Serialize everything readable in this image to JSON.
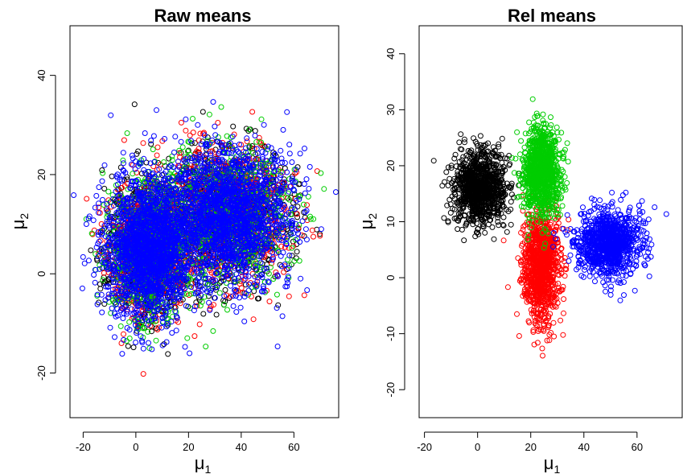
{
  "chart_data": [
    {
      "type": "scatter",
      "title": "Raw means",
      "xlabel": "μ",
      "xlabel_subscript": "1",
      "ylabel": "μ",
      "ylabel_subscript": "2",
      "xlim": [
        -25,
        77
      ],
      "ylim": [
        -29,
        50
      ],
      "xticks": [
        -20,
        0,
        20,
        40,
        60
      ],
      "yticks": [
        -20,
        0,
        20,
        40
      ],
      "grid": false,
      "marker": "open-circle",
      "series": [
        {
          "color": "#000000",
          "points_approx": 1500,
          "clusters": [
            {
              "mean": [
                5,
                5
              ],
              "sd": [
                8,
                7
              ]
            },
            {
              "mean": [
                35,
                12
              ],
              "sd": [
                12,
                7
              ]
            }
          ]
        },
        {
          "color": "#ff0000",
          "points_approx": 1500,
          "clusters": [
            {
              "mean": [
                5,
                5
              ],
              "sd": [
                8,
                7
              ]
            },
            {
              "mean": [
                35,
                12
              ],
              "sd": [
                12,
                7
              ]
            }
          ]
        },
        {
          "color": "#00cd00",
          "points_approx": 1500,
          "clusters": [
            {
              "mean": [
                5,
                5
              ],
              "sd": [
                8,
                7
              ]
            },
            {
              "mean": [
                35,
                12
              ],
              "sd": [
                12,
                7
              ]
            }
          ]
        },
        {
          "color": "#0000ff",
          "points_approx": 3500,
          "clusters": [
            {
              "mean": [
                5,
                5
              ],
              "sd": [
                8,
                7
              ]
            },
            {
              "mean": [
                35,
                12
              ],
              "sd": [
                12,
                7
              ]
            }
          ]
        }
      ]
    },
    {
      "type": "scatter",
      "title": "Rel means",
      "xlabel": "μ",
      "xlabel_subscript": "1",
      "ylabel": "μ",
      "ylabel_subscript": "2",
      "xlim": [
        -22,
        77
      ],
      "ylim": [
        -25,
        45
      ],
      "xticks": [
        -20,
        0,
        20,
        40,
        60
      ],
      "yticks": [
        -20,
        -10,
        0,
        10,
        20,
        30,
        40
      ],
      "grid": false,
      "marker": "open-circle",
      "series": [
        {
          "color": "#000000",
          "points_approx": 1000,
          "clusters": [
            {
              "mean": [
                1,
                16
              ],
              "sd": [
                5,
                3.2
              ]
            }
          ]
        },
        {
          "color": "#ff0000",
          "points_approx": 1000,
          "clusters": [
            {
              "mean": [
                24,
                2
              ],
              "sd": [
                3.5,
                5
              ]
            }
          ]
        },
        {
          "color": "#00cd00",
          "points_approx": 1000,
          "clusters": [
            {
              "mean": [
                24,
                19
              ],
              "sd": [
                3.5,
                4
              ]
            }
          ]
        },
        {
          "color": "#0000ff",
          "points_approx": 1000,
          "clusters": [
            {
              "mean": [
                49,
                6
              ],
              "sd": [
                6,
                3
              ]
            }
          ]
        }
      ]
    }
  ]
}
